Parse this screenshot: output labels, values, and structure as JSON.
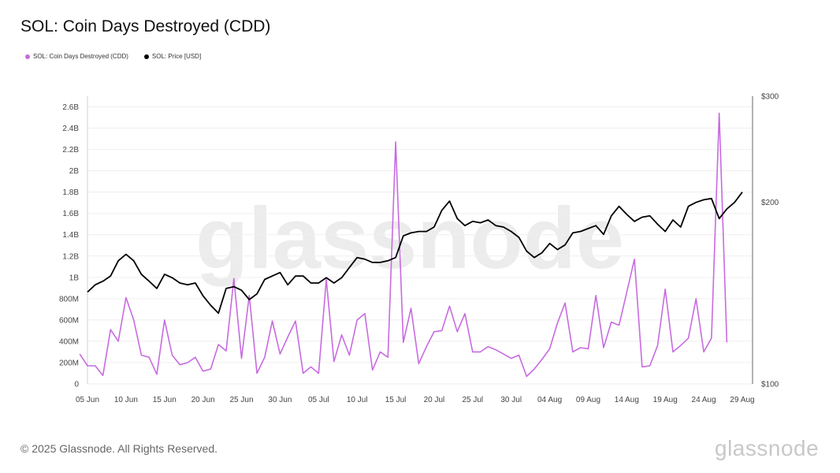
{
  "title": "SOL: Coin Days Destroyed (CDD)",
  "footer": "© 2025 Glassnode. All Rights Reserved.",
  "brand": "glassnode",
  "watermark": "glassnode",
  "colors": {
    "cdd": "#c86be0",
    "price": "#000000"
  },
  "chart_data": {
    "type": "line",
    "title": "SOL: Coin Days Destroyed (CDD)",
    "legend_position": "top-left",
    "grid": true,
    "x_ticks": [
      "05 Jun",
      "10 Jun",
      "15 Jun",
      "20 Jun",
      "25 Jun",
      "30 Jun",
      "05 Jul",
      "10 Jul",
      "15 Jul",
      "20 Jul",
      "25 Jul",
      "30 Jul",
      "04 Aug",
      "09 Aug",
      "14 Aug",
      "19 Aug",
      "24 Aug",
      "29 Aug"
    ],
    "y_left": {
      "ticks": [
        "0",
        "200M",
        "400M",
        "600M",
        "800M",
        "1B",
        "1.2B",
        "1.4B",
        "1.6B",
        "1.8B",
        "2B",
        "2.2B",
        "2.4B",
        "2.6B"
      ],
      "range": [
        0,
        2.7
      ]
    },
    "y_right": {
      "ticks": [
        "$100",
        "$200",
        "$300"
      ],
      "scale": "log",
      "range": [
        100,
        300
      ]
    },
    "series": [
      {
        "name": "SOL: Coin Days Destroyed (CDD)",
        "axis": "left",
        "unit": "billions",
        "values": [
          0.28,
          0.17,
          0.17,
          0.08,
          0.51,
          0.4,
          0.81,
          0.6,
          0.27,
          0.25,
          0.09,
          0.6,
          0.27,
          0.18,
          0.2,
          0.25,
          0.12,
          0.14,
          0.37,
          0.31,
          0.99,
          0.24,
          0.83,
          0.1,
          0.25,
          0.59,
          0.28,
          0.44,
          0.59,
          0.1,
          0.16,
          0.1,
          0.98,
          0.21,
          0.46,
          0.27,
          0.6,
          0.66,
          0.13,
          0.3,
          0.25,
          2.27,
          0.39,
          0.71,
          0.19,
          0.35,
          0.49,
          0.5,
          0.73,
          0.49,
          0.66,
          0.3,
          0.3,
          0.35,
          0.32,
          0.28,
          0.24,
          0.27,
          0.07,
          0.14,
          0.23,
          0.33,
          0.57,
          0.76,
          0.3,
          0.34,
          0.33,
          0.83,
          0.34,
          0.58,
          0.55,
          0.86,
          1.17,
          0.16,
          0.17,
          0.36,
          0.89,
          0.3,
          0.36,
          0.43,
          0.8,
          0.3,
          0.43,
          2.54,
          0.39
        ]
      },
      {
        "name": "SOL: Price [USD]",
        "axis": "right",
        "unit": "USD",
        "values": [
          142,
          146,
          148,
          151,
          160,
          164,
          160,
          152,
          148,
          144,
          152,
          150,
          147,
          146,
          147,
          140,
          135,
          131,
          144,
          145,
          143,
          138,
          141,
          149,
          151,
          153,
          146,
          151,
          151,
          147,
          147,
          150,
          147,
          150,
          156,
          162,
          161,
          159,
          159,
          160,
          162,
          176,
          178,
          179,
          179,
          182,
          194,
          201,
          188,
          183,
          186,
          185,
          187,
          183,
          182,
          179,
          175,
          166,
          162,
          165,
          171,
          167,
          170,
          178,
          179,
          181,
          183,
          177,
          190,
          197,
          191,
          186,
          189,
          190,
          184,
          179,
          187,
          182,
          197,
          200,
          202,
          203,
          188,
          195,
          200,
          208
        ]
      }
    ]
  }
}
